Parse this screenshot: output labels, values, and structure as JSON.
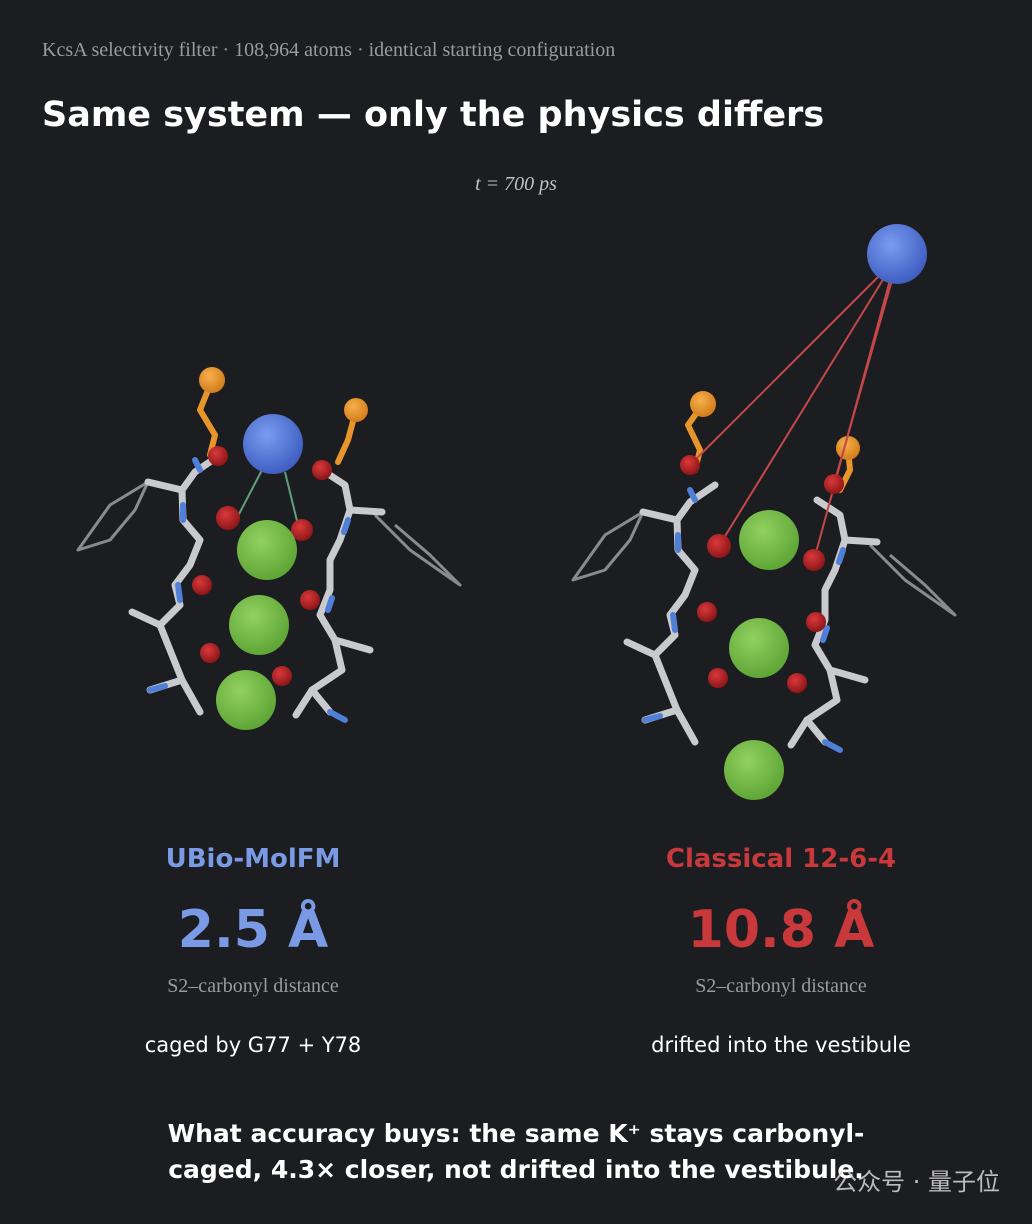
{
  "header": {
    "subtitle": "KcsA selectivity filter · 108,964 atoms · identical starting configuration",
    "title": "Same system — only the physics differs",
    "time": "t = 700 ps"
  },
  "panels": [
    {
      "name": "UBio-MolFM",
      "distance": "2.5 Å",
      "metric": "S2–carbonyl distance",
      "note": "caged by G77 + Y78"
    },
    {
      "name": "Classical 12-6-4",
      "distance": "10.8 Å",
      "metric": "S2–carbonyl distance",
      "note": "drifted into the vestibule"
    }
  ],
  "footer": {
    "lines": [
      "What accuracy buys: the same K⁺ stays carbonyl-",
      "caged, 4.3× closer, not drifted into the vestibule."
    ]
  },
  "watermark": "公众号 · 量子位"
}
